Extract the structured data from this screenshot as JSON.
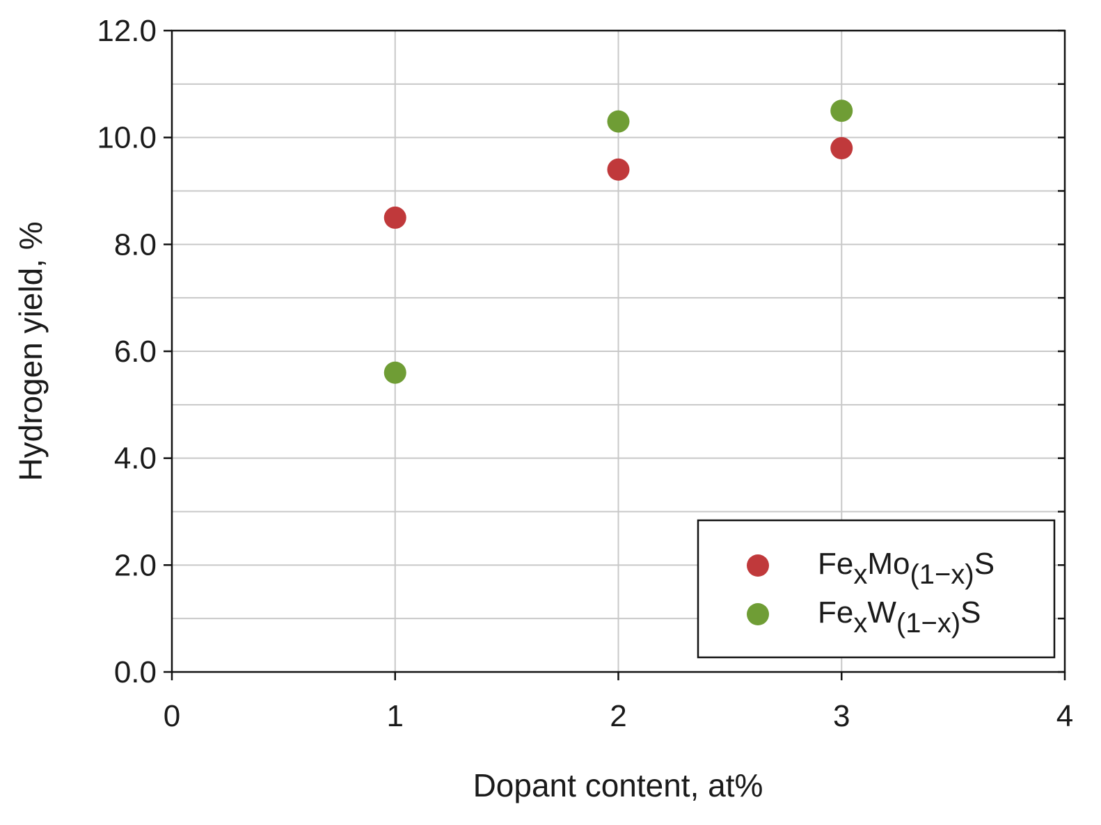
{
  "chart_data": {
    "type": "scatter",
    "title": "",
    "xlabel": "Dopant content, at%",
    "ylabel": "Hydrogen yield, %",
    "xlim": [
      0,
      4
    ],
    "ylim": [
      0,
      12
    ],
    "x_ticks": [
      "0",
      "1",
      "2",
      "3",
      "4"
    ],
    "y_ticks": [
      "0.0",
      "2.0",
      "4.0",
      "6.0",
      "8.0",
      "10.0",
      "12.0"
    ],
    "grid": true,
    "legend_position": "bottom-right",
    "series": [
      {
        "name": "FexMo(1-x)S",
        "name_parts": {
          "base": "Fe",
          "sub1": "x",
          "mid": "Mo",
          "sub2": "(1−x)",
          "end": "S"
        },
        "color": "#c0393b",
        "points": [
          {
            "x": 1,
            "y": 8.5
          },
          {
            "x": 2,
            "y": 9.4
          },
          {
            "x": 3,
            "y": 9.8
          }
        ]
      },
      {
        "name": "FexW(1-x)S",
        "name_parts": {
          "base": "Fe",
          "sub1": "x",
          "mid": "W",
          "sub2": "(1−x)",
          "end": "S"
        },
        "color": "#6f9d35",
        "points": [
          {
            "x": 1,
            "y": 5.6
          },
          {
            "x": 2,
            "y": 10.3
          },
          {
            "x": 3,
            "y": 10.5
          }
        ]
      }
    ]
  }
}
